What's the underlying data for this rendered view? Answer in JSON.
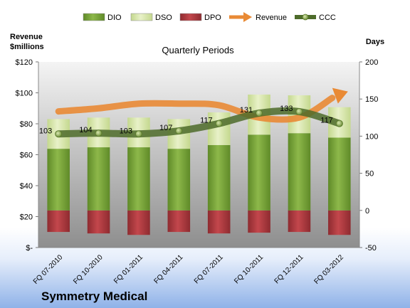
{
  "company": "Symmetry Medical",
  "colors": {
    "dio": "#7aa13a",
    "dso": "#d6e5a8",
    "dpo": "#b03a3e",
    "revenue": "#e98a35",
    "ccc": "#4d6b2a"
  },
  "chart_data": {
    "type": "bar",
    "title": "Quarterly Periods",
    "left_axis_label": "Revenue\n$millions",
    "right_axis_label": "Days",
    "left_axis": {
      "min": 0,
      "max": 120,
      "ticks": [
        "$-",
        "$20",
        "$40",
        "$60",
        "$80",
        "$100",
        "$120"
      ],
      "tick_values": [
        0,
        20,
        40,
        60,
        80,
        100,
        120
      ]
    },
    "right_axis": {
      "min": -50,
      "max": 200,
      "ticks": [
        "-50",
        "0",
        "50",
        "100",
        "150",
        "200"
      ],
      "tick_values": [
        -50,
        0,
        50,
        100,
        150,
        200
      ]
    },
    "categories": [
      "FQ 07-2010",
      "FQ 10-2010",
      "FQ 01-2011",
      "FQ 04-2011",
      "FQ 07-2011",
      "FQ 10-2011",
      "FQ 12-2011",
      "FQ 03-2012"
    ],
    "legend": [
      "DIO",
      "DSO",
      "DPO",
      "Revenue",
      "CCC"
    ],
    "legend_position": "top",
    "series": [
      {
        "name": "DIO",
        "kind": "stacked-bar",
        "axis": "right",
        "values": [
          83,
          85,
          85,
          83,
          88,
          102,
          104,
          98
        ]
      },
      {
        "name": "DSO",
        "kind": "stacked-bar",
        "axis": "right",
        "values": [
          40,
          40,
          40,
          40,
          44,
          54,
          51,
          41
        ]
      },
      {
        "name": "DPO",
        "kind": "negative-bar",
        "axis": "right",
        "values": [
          -29,
          -31,
          -33,
          -29,
          -31,
          -30,
          -29,
          -33
        ]
      },
      {
        "name": "Revenue",
        "kind": "line",
        "axis": "left",
        "values": [
          88,
          90,
          93,
          93,
          92,
          84,
          84,
          99
        ]
      },
      {
        "name": "CCC",
        "kind": "line",
        "axis": "right",
        "values": [
          103,
          104,
          103,
          107,
          117,
          131,
          133,
          117
        ],
        "labels": [
          "103",
          "104",
          "103",
          "107",
          "117",
          "131",
          "133",
          "117"
        ]
      }
    ]
  }
}
